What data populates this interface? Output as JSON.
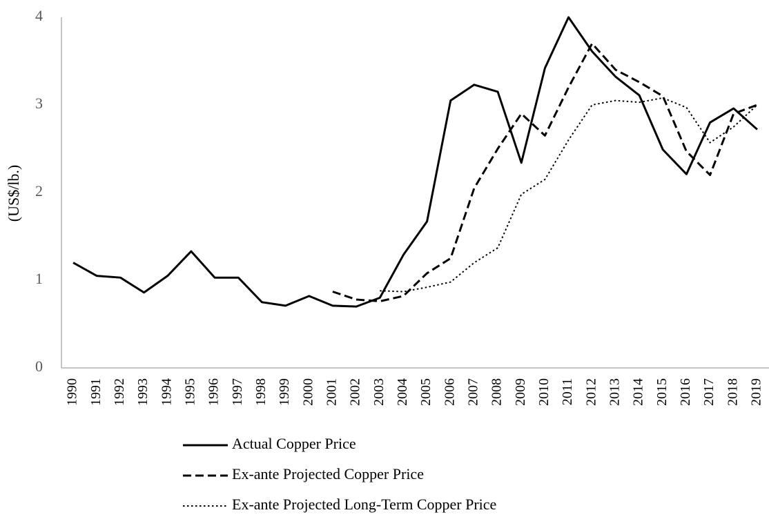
{
  "chart_data": {
    "type": "line",
    "y_label": "(US$/lb.)",
    "categories": [
      "1990",
      "1991",
      "1992",
      "1993",
      "1994",
      "1995",
      "1996",
      "1997",
      "1998",
      "1999",
      "2000",
      "2001",
      "2002",
      "2003",
      "2004",
      "2005",
      "2006",
      "2007",
      "2008",
      "2009",
      "2010",
      "2011",
      "2012",
      "2013",
      "2014",
      "2015",
      "2016",
      "2017",
      "2018",
      "2019"
    ],
    "series": [
      {
        "name": "Actual Copper Price",
        "color": "#000000",
        "line_style": "solid",
        "values": [
          1.2,
          1.05,
          1.03,
          0.86,
          1.05,
          1.33,
          1.03,
          1.03,
          0.75,
          0.71,
          0.82,
          0.71,
          0.7,
          0.8,
          1.29,
          1.67,
          3.05,
          3.23,
          3.15,
          2.34,
          3.42,
          4.0,
          3.61,
          3.32,
          3.11,
          2.49,
          2.21,
          2.8,
          2.96,
          2.72
        ]
      },
      {
        "name": "Ex-ante Projected Copper Price",
        "color": "#000000",
        "line_style": "dashed",
        "values": [
          null,
          null,
          null,
          null,
          null,
          null,
          null,
          null,
          null,
          null,
          null,
          0.87,
          0.78,
          0.76,
          0.82,
          1.08,
          1.25,
          2.05,
          2.5,
          2.9,
          2.65,
          3.2,
          3.7,
          3.4,
          3.26,
          3.1,
          2.47,
          2.2,
          2.9,
          3.0
        ]
      },
      {
        "name": "Ex-ante Projected Long-Term Copper Price",
        "color": "#000000",
        "line_style": "dotted",
        "values": [
          null,
          null,
          null,
          null,
          null,
          null,
          null,
          null,
          null,
          null,
          null,
          null,
          null,
          0.88,
          0.87,
          0.92,
          0.98,
          1.2,
          1.37,
          1.98,
          2.15,
          2.6,
          3.0,
          3.05,
          3.03,
          3.08,
          2.97,
          2.57,
          2.75,
          3.0
        ]
      }
    ],
    "ylim": [
      0,
      4
    ],
    "yticks": [
      0,
      1,
      2,
      3,
      4
    ],
    "grid": false,
    "legend": "bottom"
  }
}
